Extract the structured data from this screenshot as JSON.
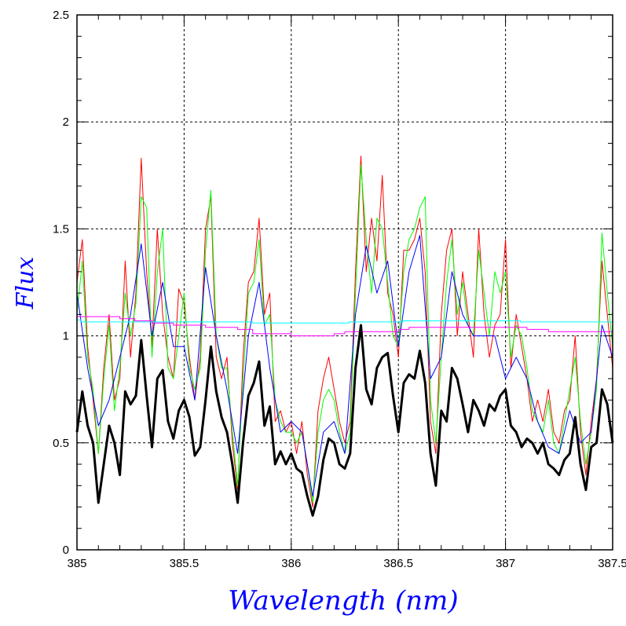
{
  "chart_data": {
    "type": "line",
    "title": "",
    "xlabel": "Wavelength (nm)",
    "ylabel": "Flux",
    "xlim": [
      385,
      387.5
    ],
    "ylim": [
      0,
      2.5
    ],
    "grid": true,
    "xticks": [
      "385",
      "385.5",
      "386",
      "386.5",
      "387",
      "387.5"
    ],
    "yticks": [
      "0",
      "0.5",
      "1",
      "1.5",
      "2",
      "2.5"
    ],
    "x_grid_fine": [
      385,
      385.025,
      385.05,
      385.075,
      385.1,
      385.125,
      385.15,
      385.175,
      385.2,
      385.225,
      385.25,
      385.275,
      385.3,
      385.325,
      385.35,
      385.375,
      385.4,
      385.425,
      385.45,
      385.475,
      385.5,
      385.525,
      385.55,
      385.575,
      385.6,
      385.625,
      385.65,
      385.675,
      385.7,
      385.725,
      385.75,
      385.775,
      385.8,
      385.825,
      385.85,
      385.875,
      385.9,
      385.925,
      385.95,
      385.975,
      386,
      386.025,
      386.05,
      386.075,
      386.1,
      386.125,
      386.15,
      386.175,
      386.2,
      386.225,
      386.25,
      386.275,
      386.3,
      386.325,
      386.35,
      386.375,
      386.4,
      386.425,
      386.45,
      386.475,
      386.5,
      386.525,
      386.55,
      386.575,
      386.6,
      386.625,
      386.65,
      386.675,
      386.7,
      386.725,
      386.75,
      386.775,
      386.8,
      386.825,
      386.85,
      386.875,
      386.9,
      386.925,
      386.95,
      386.975,
      387,
      387.025,
      387.05,
      387.075,
      387.1,
      387.125,
      387.15,
      387.175,
      387.2,
      387.225,
      387.25,
      387.275,
      387.3,
      387.325,
      387.35,
      387.375,
      387.4,
      387.425,
      387.45,
      387.475,
      387.5
    ],
    "series": [
      {
        "color": "#ff0000",
        "width": 1,
        "y": [
          1.25,
          1.45,
          0.95,
          0.7,
          0.45,
          0.85,
          1.1,
          0.7,
          0.8,
          1.35,
          0.9,
          1.2,
          1.83,
          1.3,
          0.95,
          1.5,
          1.1,
          0.9,
          0.8,
          1.22,
          1.15,
          0.9,
          0.7,
          0.9,
          1.5,
          1.65,
          0.9,
          0.8,
          0.9,
          0.5,
          0.28,
          0.9,
          1.25,
          1.3,
          1.55,
          1.1,
          1.2,
          0.6,
          0.65,
          0.55,
          0.6,
          0.45,
          0.6,
          0.35,
          0.2,
          0.65,
          0.8,
          0.9,
          0.75,
          0.6,
          0.5,
          0.6,
          1.3,
          1.84,
          1.3,
          1.55,
          1.35,
          1.75,
          1.2,
          1.1,
          0.9,
          1.4,
          1.4,
          1.45,
          1.55,
          1.3,
          0.6,
          0.45,
          1.1,
          1.4,
          1.5,
          1.0,
          1.3,
          1.1,
          0.9,
          1.5,
          1.1,
          0.9,
          1.05,
          1.1,
          1.45,
          0.85,
          1.1,
          0.95,
          0.8,
          0.6,
          0.7,
          0.6,
          0.75,
          0.55,
          0.5,
          0.65,
          0.7,
          1.0,
          0.55,
          0.35,
          0.6,
          0.8,
          1.35,
          1.1,
          0.85
        ]
      },
      {
        "color": "#00ff00",
        "width": 1,
        "y": [
          1.1,
          1.35,
          0.9,
          0.75,
          0.45,
          0.8,
          1.05,
          0.65,
          0.85,
          1.2,
          1.0,
          1.15,
          1.65,
          1.6,
          0.9,
          1.3,
          1.5,
          0.85,
          0.8,
          1.0,
          1.2,
          0.85,
          0.75,
          0.85,
          1.4,
          1.68,
          1.0,
          0.85,
          0.85,
          0.55,
          0.3,
          0.8,
          1.2,
          1.25,
          1.45,
          1.05,
          1.1,
          0.7,
          0.6,
          0.55,
          0.55,
          0.5,
          0.55,
          0.4,
          0.22,
          0.55,
          0.7,
          0.75,
          0.7,
          0.55,
          0.45,
          0.55,
          1.2,
          1.8,
          1.45,
          1.2,
          1.55,
          1.5,
          1.25,
          1.0,
          0.95,
          1.3,
          1.45,
          1.5,
          1.6,
          1.65,
          0.7,
          0.5,
          0.9,
          1.25,
          1.45,
          1.1,
          1.25,
          1.05,
          1.0,
          1.4,
          1.2,
          1.0,
          1.3,
          1.2,
          1.3,
          0.9,
          1.05,
          1.0,
          0.85,
          0.65,
          0.6,
          0.55,
          0.7,
          0.5,
          0.45,
          0.6,
          0.75,
          0.9,
          0.6,
          0.4,
          0.55,
          0.75,
          1.48,
          1.2,
          0.95
        ]
      },
      {
        "color": "#0000ff",
        "width": 1,
        "x": [
          385,
          385.05,
          385.1,
          385.15,
          385.2,
          385.25,
          385.3,
          385.35,
          385.4,
          385.45,
          385.5,
          385.55,
          385.6,
          385.65,
          385.7,
          385.75,
          385.8,
          385.85,
          385.9,
          385.95,
          386,
          386.05,
          386.1,
          386.15,
          386.2,
          386.25,
          386.3,
          386.35,
          386.4,
          386.45,
          386.5,
          386.55,
          386.6,
          386.65,
          386.7,
          386.75,
          386.8,
          386.85,
          386.9,
          386.95,
          387,
          387.05,
          387.1,
          387.15,
          387.2,
          387.25,
          387.3,
          387.35,
          387.4,
          387.45,
          387.5
        ],
        "y": [
          1.2,
          0.85,
          0.58,
          0.7,
          0.9,
          1.1,
          1.43,
          1.0,
          1.25,
          0.95,
          0.95,
          0.7,
          1.32,
          1.0,
          0.75,
          0.45,
          1.0,
          1.25,
          0.85,
          0.55,
          0.6,
          0.55,
          0.25,
          0.55,
          0.6,
          0.45,
          1.1,
          1.42,
          1.2,
          1.35,
          0.95,
          1.3,
          1.47,
          0.8,
          0.9,
          1.3,
          1.1,
          1.0,
          1.0,
          1.0,
          0.8,
          0.9,
          0.8,
          0.6,
          0.48,
          0.45,
          0.65,
          0.5,
          0.55,
          1.05,
          0.9
        ]
      },
      {
        "color": "#00ffff",
        "width": 1,
        "step": true,
        "x": [
          385,
          385.02,
          385.8,
          385.82,
          386.25,
          386.27,
          386.5,
          386.52,
          387.05,
          387.07,
          387.5
        ],
        "y": [
          1.075,
          1.065,
          1.065,
          1.06,
          1.06,
          1.065,
          1.065,
          1.07,
          1.07,
          1.065,
          1.065
        ]
      },
      {
        "color": "#ff00ff",
        "width": 1,
        "step": true,
        "x": [
          385,
          385.15,
          385.2,
          385.27,
          385.35,
          385.45,
          385.6,
          385.75,
          385.82,
          386,
          386.2,
          386.25,
          386.5,
          386.55,
          387.0,
          387.1,
          387.2,
          387.5
        ],
        "y": [
          1.09,
          1.09,
          1.08,
          1.07,
          1.06,
          1.05,
          1.04,
          1.03,
          1.01,
          1.0,
          1.01,
          1.02,
          1.03,
          1.04,
          1.04,
          1.03,
          1.02,
          1.02
        ]
      },
      {
        "color": "#000000",
        "width": 3,
        "y": [
          0.55,
          0.74,
          0.58,
          0.5,
          0.22,
          0.4,
          0.58,
          0.5,
          0.35,
          0.74,
          0.68,
          0.72,
          0.98,
          0.72,
          0.48,
          0.8,
          0.84,
          0.6,
          0.52,
          0.65,
          0.7,
          0.62,
          0.44,
          0.48,
          0.7,
          0.95,
          0.74,
          0.62,
          0.55,
          0.4,
          0.22,
          0.5,
          0.72,
          0.78,
          0.88,
          0.58,
          0.67,
          0.4,
          0.46,
          0.4,
          0.45,
          0.38,
          0.36,
          0.25,
          0.16,
          0.25,
          0.42,
          0.52,
          0.5,
          0.4,
          0.38,
          0.45,
          0.85,
          1.05,
          0.75,
          0.68,
          0.85,
          0.9,
          0.92,
          0.72,
          0.55,
          0.78,
          0.82,
          0.8,
          0.93,
          0.78,
          0.45,
          0.3,
          0.65,
          0.6,
          0.85,
          0.8,
          0.68,
          0.55,
          0.7,
          0.65,
          0.58,
          0.68,
          0.65,
          0.72,
          0.75,
          0.58,
          0.55,
          0.48,
          0.52,
          0.5,
          0.45,
          0.5,
          0.4,
          0.38,
          0.35,
          0.42,
          0.45,
          0.62,
          0.4,
          0.28,
          0.48,
          0.5,
          0.75,
          0.68,
          0.5
        ]
      }
    ]
  }
}
